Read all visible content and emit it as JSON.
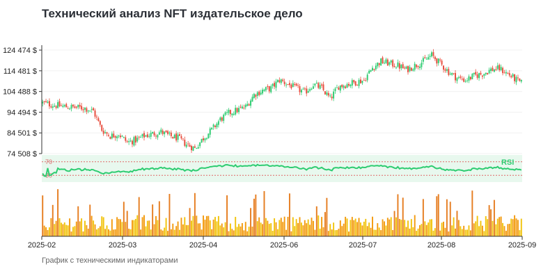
{
  "title": "Технический анализ NFT издательское дело",
  "subtitle": "График с техническими индикаторами",
  "chart_data": {
    "type": "candlestick",
    "title": "Технический анализ NFT издательское дело",
    "y_ticks": [
      "74 508 $",
      "84 501 $",
      "94 494 $",
      "104 488 $",
      "114 481 $",
      "124 474 $"
    ],
    "y_tick_values": [
      74508,
      84501,
      94494,
      104488,
      114481,
      124474
    ],
    "ylim": [
      74508,
      125500
    ],
    "x_ticks": [
      "2025-02",
      "2025-03",
      "2025-04",
      "2025-06",
      "2025-07",
      "2025-08",
      "2025-09"
    ],
    "rsi": {
      "label": "RSI",
      "levels": [
        "70",
        "30"
      ],
      "level_values": [
        70,
        30
      ],
      "range": [
        0,
        100
      ]
    },
    "colors": {
      "up": "#2ecc71",
      "down": "#e74c3c",
      "rsi": "#2ecc71",
      "rsi_band": "#e8f8ee",
      "volume_low": "#f1c40f",
      "volume_high": "#e67e22"
    },
    "price_keypoints": [
      [
        0,
        99000
      ],
      [
        6,
        98000
      ],
      [
        15,
        97000
      ],
      [
        25,
        96500
      ],
      [
        30,
        95000
      ],
      [
        35,
        86000
      ],
      [
        40,
        83000
      ],
      [
        45,
        84000
      ],
      [
        50,
        80000
      ],
      [
        55,
        81000
      ],
      [
        60,
        83000
      ],
      [
        65,
        84000
      ],
      [
        70,
        85000
      ],
      [
        75,
        83000
      ],
      [
        80,
        82000
      ],
      [
        85,
        79000
      ],
      [
        90,
        77000
      ],
      [
        95,
        82000
      ],
      [
        100,
        86000
      ],
      [
        105,
        91000
      ],
      [
        110,
        94000
      ],
      [
        115,
        95500
      ],
      [
        120,
        97000
      ],
      [
        125,
        103000
      ],
      [
        130,
        105000
      ],
      [
        135,
        106000
      ],
      [
        140,
        110000
      ],
      [
        145,
        108000
      ],
      [
        150,
        106000
      ],
      [
        155,
        104000
      ],
      [
        160,
        108000
      ],
      [
        165,
        106000
      ],
      [
        170,
        101000
      ],
      [
        175,
        107000
      ],
      [
        180,
        108000
      ],
      [
        185,
        109000
      ],
      [
        190,
        110000
      ],
      [
        195,
        116000
      ],
      [
        200,
        119000
      ],
      [
        205,
        118000
      ],
      [
        210,
        117000
      ],
      [
        215,
        115000
      ],
      [
        220,
        117000
      ],
      [
        225,
        119000
      ],
      [
        230,
        122000
      ],
      [
        235,
        118000
      ],
      [
        240,
        114000
      ],
      [
        245,
        111000
      ],
      [
        250,
        110000
      ],
      [
        255,
        112000
      ],
      [
        260,
        113000
      ],
      [
        265,
        115000
      ],
      [
        270,
        115500
      ],
      [
        275,
        113000
      ],
      [
        280,
        110000
      ],
      [
        283,
        108500
      ]
    ],
    "n_candles": 284
  }
}
